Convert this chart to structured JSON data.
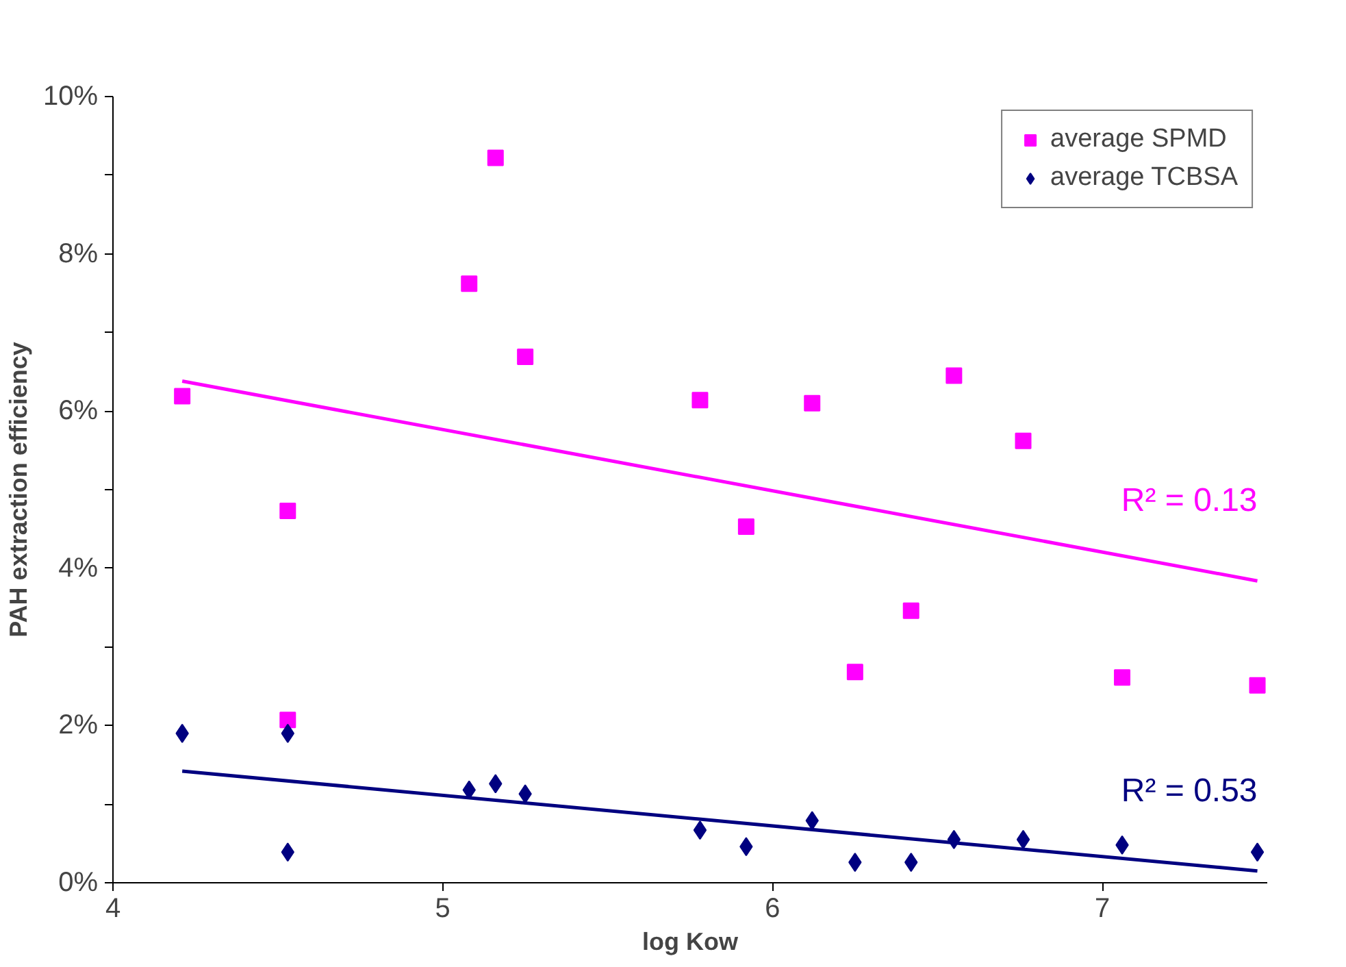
{
  "chart_data": {
    "type": "scatter",
    "xlabel": "log Kow",
    "ylabel": "PAH extraction efficiency",
    "xlim": [
      4,
      7.5
    ],
    "xticks": [
      4,
      5,
      6,
      7
    ],
    "ylim": [
      0,
      10
    ],
    "yticks": [
      {
        "value": 0,
        "label": "0%"
      },
      {
        "value": 1,
        "label": null
      },
      {
        "value": 2,
        "label": "2%"
      },
      {
        "value": 3,
        "label": null
      },
      {
        "value": 4,
        "label": "4%"
      },
      {
        "value": 5,
        "label": null
      },
      {
        "value": 6,
        "label": "6%"
      },
      {
        "value": 7,
        "label": null
      },
      {
        "value": 8,
        "label": "8%"
      },
      {
        "value": 9,
        "label": null
      },
      {
        "value": 10,
        "label": "10%"
      }
    ],
    "grid": false,
    "legend": "top right",
    "series": [
      {
        "name": "average SPMD",
        "color": "#ff00ff",
        "marker": "square",
        "x": [
          4.21,
          4.53,
          4.53,
          5.08,
          5.16,
          5.25,
          5.78,
          5.92,
          6.12,
          6.25,
          6.42,
          6.55,
          6.76,
          7.06,
          7.47
        ],
        "values": [
          6.19,
          4.73,
          2.07,
          7.62,
          9.22,
          6.69,
          6.14,
          4.53,
          6.1,
          2.68,
          3.46,
          6.45,
          5.62,
          2.61,
          2.51
        ]
      },
      {
        "name": "average TCBSA",
        "color": "#000080",
        "marker": "diamond",
        "x": [
          4.21,
          4.53,
          4.53,
          5.08,
          5.16,
          5.25,
          5.78,
          5.92,
          6.12,
          6.25,
          6.42,
          6.55,
          6.76,
          7.06,
          7.47
        ],
        "values": [
          1.9,
          1.9,
          0.39,
          1.18,
          1.26,
          1.13,
          0.67,
          0.46,
          0.79,
          0.26,
          0.26,
          0.55,
          0.55,
          0.48,
          0.39
        ]
      },
      {
        "type": "line",
        "color": "#ff00ff",
        "marker": "none",
        "x": [
          4.21,
          7.47
        ],
        "values": [
          6.38,
          3.84
        ]
      },
      {
        "type": "line",
        "color": "#000080",
        "marker": "none",
        "x": [
          4.21,
          7.47
        ],
        "values": [
          1.42,
          0.15
        ]
      }
    ],
    "annotations": [
      "R² = 0.13",
      "R² = 0.53"
    ]
  }
}
